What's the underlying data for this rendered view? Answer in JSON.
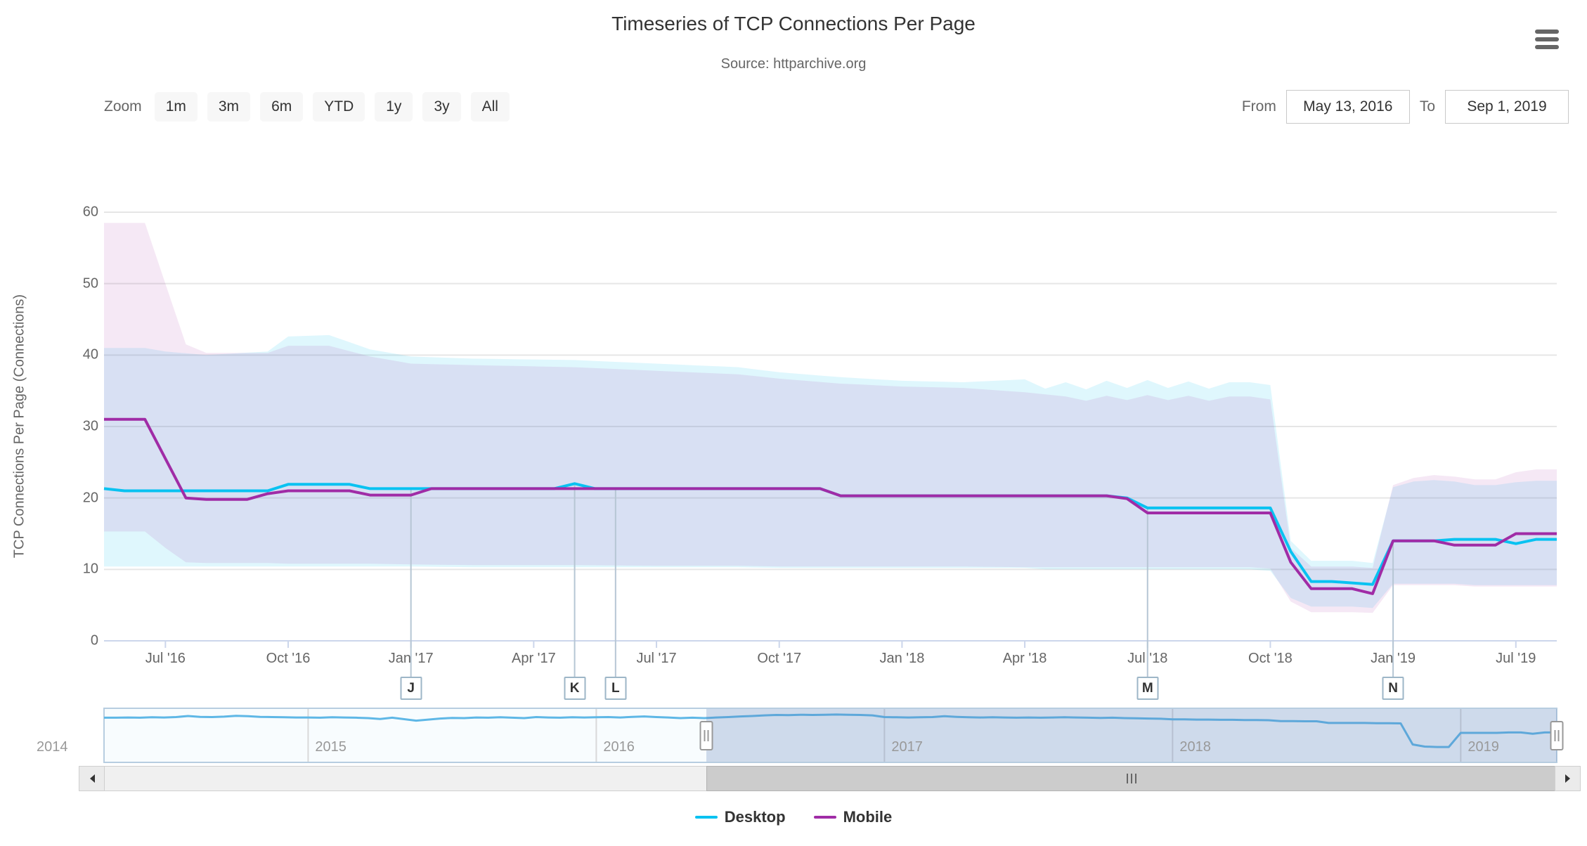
{
  "header": {
    "title": "Timeseries of TCP Connections Per Page",
    "subtitle": "Source: httparchive.org",
    "menu_icon": "hamburger-icon"
  },
  "toolbar": {
    "zoom_label": "Zoom",
    "zoom_buttons": [
      "1m",
      "3m",
      "6m",
      "YTD",
      "1y",
      "3y",
      "All"
    ],
    "from_label": "From",
    "from_value": "May 13, 2016",
    "to_label": "To",
    "to_value": "Sep 1, 2019"
  },
  "colors": {
    "desktop_line": "#09c2f1",
    "mobile_line": "#a02ca6",
    "desktop_band_fill": "rgba(9,194,241,0.13)",
    "mobile_band_fill": "rgba(160,44,166,0.11)",
    "grid_line": "#e6e6e6",
    "axis_line": "#ccd6eb",
    "flag_stem": "#b6c6d4",
    "navigator_line": "#5eb7e6",
    "navigator_outline": "#b7cde0",
    "navigator_mask": "rgba(96,130,186,0.28)",
    "navigator_bg": "#f8fcfe",
    "nav_year_grid": "#d9d9d9"
  },
  "chart_data": {
    "type": "line",
    "title": "Timeseries of TCP Connections Per Page",
    "subtitle": "Source: httparchive.org",
    "ylabel": "TCP Connections Per Page (Connections)",
    "ylim": [
      0,
      60
    ],
    "yticks": [
      0,
      10,
      20,
      30,
      40,
      50,
      60
    ],
    "x_mode": "ordinal crawl dates: semi-monthly May 13 2016 - Dec 15 2018, then monthly Jan 1 - Sep 1 2019 (72 points)",
    "xticks": [
      {
        "index": 3,
        "label": "Jul '16"
      },
      {
        "index": 9,
        "label": "Oct '16"
      },
      {
        "index": 15,
        "label": "Jan '17"
      },
      {
        "index": 21,
        "label": "Apr '17"
      },
      {
        "index": 27,
        "label": "Jul '17"
      },
      {
        "index": 33,
        "label": "Oct '17"
      },
      {
        "index": 39,
        "label": "Jan '18"
      },
      {
        "index": 45,
        "label": "Apr '18"
      },
      {
        "index": 51,
        "label": "Jul '18"
      },
      {
        "index": 57,
        "label": "Oct '18"
      },
      {
        "index": 63,
        "label": "Jan '19"
      },
      {
        "index": 69,
        "label": "Jul '19"
      }
    ],
    "series": [
      {
        "name": "Desktop",
        "color": "#09c2f1",
        "values": [
          21.3,
          21,
          21,
          21,
          21,
          21,
          21,
          21,
          21,
          21.9,
          21.9,
          21.9,
          21.9,
          21.3,
          21.3,
          21.3,
          21.3,
          21.3,
          21.3,
          21.3,
          21.3,
          21.3,
          21.3,
          22,
          21.3,
          21.3,
          21.3,
          21.3,
          21.3,
          21.3,
          21.3,
          21.3,
          21.3,
          21.3,
          21.3,
          21.3,
          20.3,
          20.3,
          20.3,
          20.3,
          20.3,
          20.3,
          20.3,
          20.3,
          20.3,
          20.3,
          20.3,
          20.3,
          20.3,
          20.3,
          20,
          18.6,
          18.6,
          18.6,
          18.6,
          18.6,
          18.6,
          18.6,
          12.5,
          8.3,
          8.3,
          8.1,
          7.9,
          14,
          14,
          14,
          14.2,
          14.2,
          14.2,
          13.6,
          14.2,
          14.2
        ]
      },
      {
        "name": "Mobile",
        "color": "#a02ca6",
        "values": [
          31,
          31,
          31,
          25.5,
          20,
          19.8,
          19.8,
          19.8,
          20.6,
          21,
          21,
          21,
          21,
          20.4,
          20.4,
          20.4,
          21.3,
          21.3,
          21.3,
          21.3,
          21.3,
          21.3,
          21.3,
          21.3,
          21.3,
          21.3,
          21.3,
          21.3,
          21.3,
          21.3,
          21.3,
          21.3,
          21.3,
          21.3,
          21.3,
          21.3,
          20.3,
          20.3,
          20.3,
          20.3,
          20.3,
          20.3,
          20.3,
          20.3,
          20.3,
          20.3,
          20.3,
          20.3,
          20.3,
          20.3,
          19.9,
          17.9,
          17.9,
          17.9,
          17.9,
          17.9,
          17.9,
          17.9,
          11,
          7.3,
          7.3,
          7.3,
          6.6,
          14,
          14,
          14,
          13.4,
          13.4,
          13.4,
          15,
          15,
          15
        ]
      }
    ],
    "ranges": [
      {
        "name": "Desktop 25th-75th percentile band",
        "fill": "rgba(9,194,241,0.13)",
        "anchors": [
          [
            0,
            10.4,
            41
          ],
          [
            2,
            10.4,
            41
          ],
          [
            3,
            10.4,
            40.5
          ],
          [
            5,
            10.4,
            40
          ],
          [
            8,
            10.4,
            40.5
          ],
          [
            9,
            10.4,
            42.6
          ],
          [
            11,
            10.4,
            42.8
          ],
          [
            13,
            10.4,
            40.8
          ],
          [
            15,
            10.4,
            39.8
          ],
          [
            18,
            10.3,
            39.5
          ],
          [
            23,
            10.3,
            39.3
          ],
          [
            27,
            10.3,
            38.8
          ],
          [
            31,
            10.3,
            38.3
          ],
          [
            33,
            10.2,
            37.6
          ],
          [
            36,
            10.2,
            36.9
          ],
          [
            39,
            10.2,
            36.4
          ],
          [
            42,
            10.2,
            36.2
          ],
          [
            45,
            10.2,
            36.6
          ],
          [
            46,
            10,
            35.3
          ],
          [
            47,
            10,
            36.2
          ],
          [
            48,
            10,
            35.2
          ],
          [
            49,
            10,
            36.4
          ],
          [
            50,
            10,
            35.4
          ],
          [
            51,
            10,
            36.5
          ],
          [
            52,
            10,
            35.4
          ],
          [
            53,
            10,
            36.3
          ],
          [
            54,
            10,
            35.3
          ],
          [
            55,
            10,
            36.2
          ],
          [
            56,
            10,
            36.2
          ],
          [
            57,
            9.8,
            35.8
          ],
          [
            58,
            6,
            14
          ],
          [
            59,
            4.8,
            11.2
          ],
          [
            61,
            4.8,
            11.2
          ],
          [
            62,
            4.6,
            10.9
          ],
          [
            63,
            8,
            21.5
          ],
          [
            64,
            8,
            22.3
          ],
          [
            65,
            8,
            22.5
          ],
          [
            66,
            8,
            22.3
          ],
          [
            67,
            7.8,
            21.8
          ],
          [
            68,
            7.8,
            21.8
          ],
          [
            69,
            7.8,
            22.2
          ],
          [
            70,
            7.8,
            22.4
          ],
          [
            71,
            7.8,
            22.4
          ]
        ]
      },
      {
        "name": "Mobile 25th-75th percentile band",
        "fill": "rgba(160,44,166,0.11)",
        "anchors": [
          [
            0,
            15.3,
            58.5
          ],
          [
            2,
            15.3,
            58.5
          ],
          [
            3,
            13,
            50
          ],
          [
            4,
            11,
            41.5
          ],
          [
            5,
            10.9,
            40.3
          ],
          [
            8,
            10.9,
            40.3
          ],
          [
            9,
            10.8,
            41.3
          ],
          [
            11,
            10.8,
            41.3
          ],
          [
            13,
            10.8,
            39.8
          ],
          [
            15,
            10.7,
            38.8
          ],
          [
            18,
            10.6,
            38.6
          ],
          [
            23,
            10.6,
            38.3
          ],
          [
            27,
            10.5,
            37.8
          ],
          [
            31,
            10.5,
            37.3
          ],
          [
            33,
            10.4,
            36.7
          ],
          [
            36,
            10.4,
            36
          ],
          [
            39,
            10.4,
            35.6
          ],
          [
            42,
            10.4,
            35.4
          ],
          [
            45,
            10.3,
            34.8
          ],
          [
            47,
            10.3,
            34.2
          ],
          [
            48,
            10.3,
            33.6
          ],
          [
            49,
            10.3,
            34.3
          ],
          [
            50,
            10.3,
            33.7
          ],
          [
            51,
            10.3,
            34.4
          ],
          [
            52,
            10.3,
            33.7
          ],
          [
            53,
            10.3,
            34.3
          ],
          [
            54,
            10.3,
            33.6
          ],
          [
            55,
            10.3,
            34.2
          ],
          [
            56,
            10.3,
            34.2
          ],
          [
            57,
            10.1,
            33.8
          ],
          [
            58,
            5.5,
            13
          ],
          [
            59,
            4,
            10.4
          ],
          [
            61,
            4,
            10.4
          ],
          [
            62,
            3.9,
            10.2
          ],
          [
            63,
            7.8,
            21.8
          ],
          [
            64,
            7.8,
            22.8
          ],
          [
            65,
            7.8,
            23.2
          ],
          [
            66,
            7.8,
            23
          ],
          [
            67,
            7.6,
            22.6
          ],
          [
            68,
            7.6,
            22.6
          ],
          [
            69,
            7.6,
            23.6
          ],
          [
            70,
            7.6,
            24
          ],
          [
            71,
            7.6,
            24
          ]
        ]
      }
    ],
    "flags": [
      {
        "label": "J",
        "index": 15
      },
      {
        "label": "K",
        "index": 23
      },
      {
        "label": "L",
        "index": 25
      },
      {
        "label": "M",
        "index": 51
      },
      {
        "label": "N",
        "index": 63
      }
    ],
    "navigator": {
      "note": "Desktop series over full archive, semi-monthly Apr 15 2014 - Dec 15 2018 then monthly 2019",
      "values": [
        21.2,
        21.2,
        21.3,
        21.2,
        21.4,
        21.3,
        21.5,
        22,
        21.6,
        21.5,
        21.7,
        22.1,
        21.9,
        21.6,
        21.5,
        21.4,
        21.3,
        21.3,
        21.2,
        21.4,
        21.3,
        21.2,
        21,
        20.6,
        21.2,
        20.5,
        19.8,
        20.3,
        20.8,
        21.1,
        21,
        21.3,
        21.2,
        21.4,
        21.2,
        21,
        21.5,
        21.3,
        21.2,
        21.4,
        21.3,
        21.4,
        21.5,
        21.3,
        21.6,
        21.8,
        21.5,
        21.3,
        21,
        21.2,
        21,
        21.3,
        21.5,
        21.8,
        22,
        22.3,
        22.5,
        22.4,
        22.6,
        22.5,
        22.6,
        22.7,
        22.6,
        22.5,
        22.3,
        21.5,
        21.4,
        21.3,
        21.4,
        21.5,
        21.9,
        21.6,
        21.4,
        21.3,
        21.4,
        21.3,
        21.2,
        21.3,
        21.2,
        21.3,
        21.4,
        21.3,
        21.2,
        21.1,
        21.2,
        21,
        20.9,
        20.8,
        20.7,
        20.4,
        20.4,
        20.3,
        20.3,
        20.2,
        20.2,
        20.1,
        20.1,
        20,
        19.6,
        19.6,
        19.5,
        19.5,
        18.7,
        18.7,
        18.7,
        18.7,
        18.6,
        18.6,
        18.5,
        8.5,
        7.5,
        7.3,
        7.3,
        14,
        14,
        14,
        14,
        14.2,
        14.2,
        13.6,
        14.2,
        14.2
      ],
      "year_labels": [
        {
          "label": "2015",
          "point_index": 17
        },
        {
          "label": "2016",
          "point_index": 41
        },
        {
          "label": "2017",
          "point_index": 65
        },
        {
          "label": "2018",
          "point_index": 89
        },
        {
          "label": "2019",
          "point_index": 113
        }
      ],
      "leading_year_label": "2014",
      "selected_range_note": "selection from May 13 2016 to Sep 1 2019"
    }
  },
  "legend": [
    {
      "label": "Desktop",
      "color": "#09c2f1"
    },
    {
      "label": "Mobile",
      "color": "#a02ca6"
    }
  ]
}
